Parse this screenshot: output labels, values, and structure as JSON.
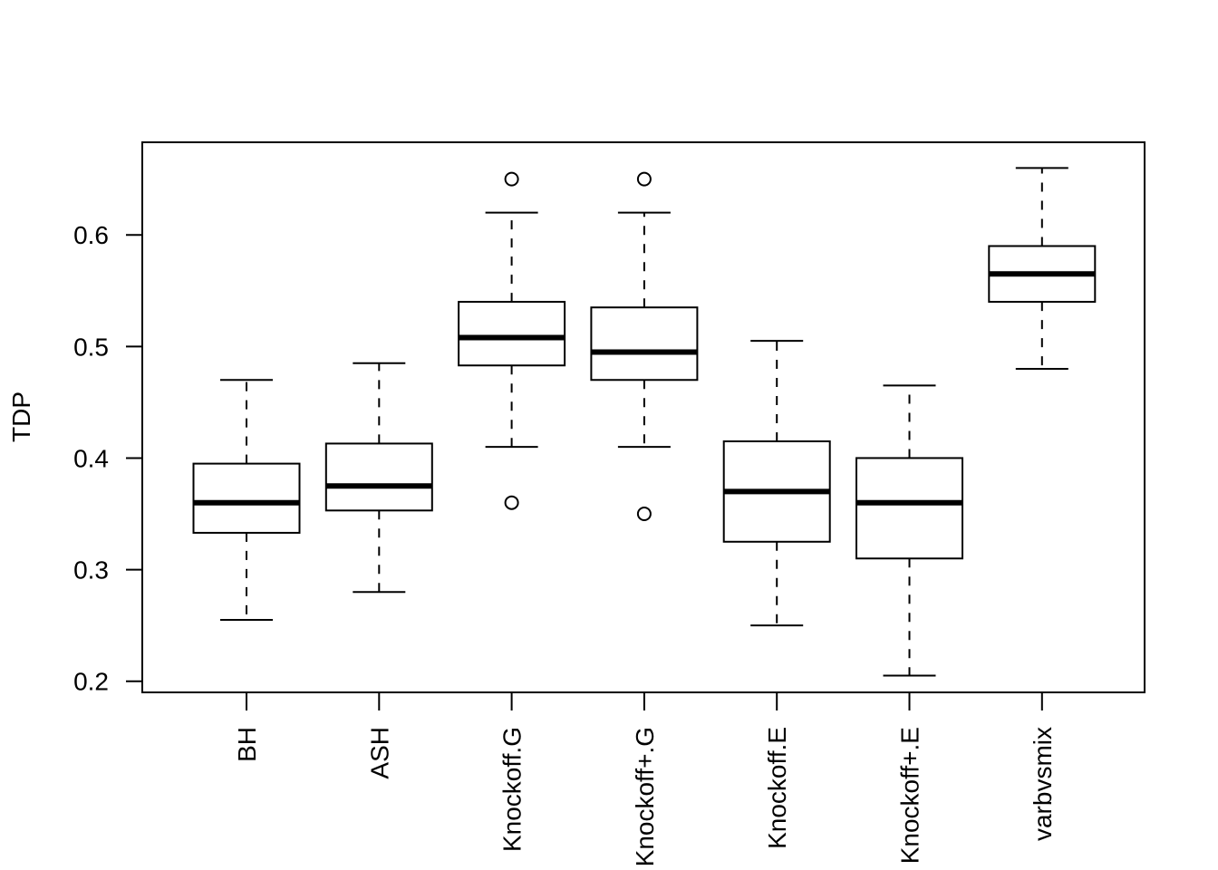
{
  "chart_data": {
    "type": "boxplot",
    "ylabel": "TDP",
    "ylim": [
      0.19,
      0.683
    ],
    "yticks": [
      0.2,
      0.3,
      0.4,
      0.5,
      0.6
    ],
    "ytick_labels": [
      "0.2",
      "0.3",
      "0.4",
      "0.5",
      "0.6"
    ],
    "grid": false,
    "categories": [
      "BH",
      "ASH",
      "Knockoff.G",
      "Knockoff+.G",
      "Knockoff.E",
      "Knockoff+.E",
      "varbvsmix"
    ],
    "boxes": [
      {
        "whisker_low": 0.255,
        "q1": 0.333,
        "median": 0.36,
        "q3": 0.395,
        "whisker_high": 0.47,
        "outliers": []
      },
      {
        "whisker_low": 0.28,
        "q1": 0.353,
        "median": 0.375,
        "q3": 0.413,
        "whisker_high": 0.485,
        "outliers": []
      },
      {
        "whisker_low": 0.41,
        "q1": 0.483,
        "median": 0.508,
        "q3": 0.54,
        "whisker_high": 0.62,
        "outliers": [
          0.65,
          0.36
        ]
      },
      {
        "whisker_low": 0.41,
        "q1": 0.47,
        "median": 0.495,
        "q3": 0.535,
        "whisker_high": 0.62,
        "outliers": [
          0.65,
          0.35
        ]
      },
      {
        "whisker_low": 0.25,
        "q1": 0.325,
        "median": 0.37,
        "q3": 0.415,
        "whisker_high": 0.505,
        "outliers": []
      },
      {
        "whisker_low": 0.205,
        "q1": 0.31,
        "median": 0.36,
        "q3": 0.4,
        "whisker_high": 0.465,
        "outliers": []
      },
      {
        "whisker_low": 0.48,
        "q1": 0.54,
        "median": 0.565,
        "q3": 0.59,
        "whisker_high": 0.66,
        "outliers": []
      }
    ]
  }
}
